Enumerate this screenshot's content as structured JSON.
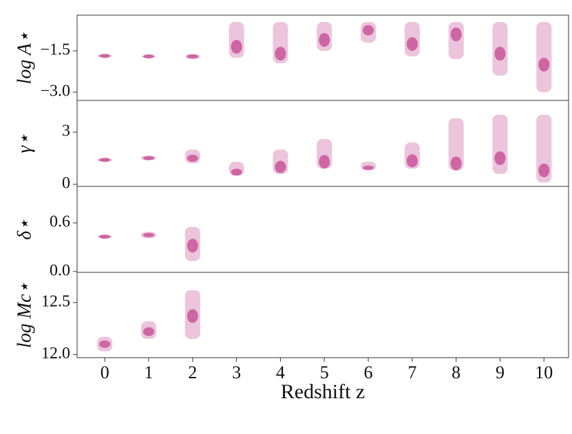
{
  "chart_data": [
    {
      "type": "strip",
      "ylabel": "log A⋆",
      "color": "#c9559b",
      "x": [
        0,
        1,
        2,
        3,
        4,
        5,
        6,
        7,
        8,
        9,
        10
      ],
      "xlim": [
        -0.63,
        10.56
      ],
      "ylim": [
        -3.3,
        -0.2
      ],
      "yticks": [
        {
          "value": -1.5,
          "label": "−1.5"
        },
        {
          "value": -3.0,
          "label": "−3.0"
        }
      ],
      "median": [
        -1.68,
        -1.7,
        -1.7,
        -1.35,
        -1.6,
        -1.1,
        -0.75,
        -1.25,
        -0.9,
        -1.6,
        -2.0
      ],
      "low": [
        -1.72,
        -1.73,
        -1.8,
        -1.75,
        -1.95,
        -1.5,
        -1.2,
        -1.7,
        -1.8,
        -2.4,
        -3.0
      ],
      "high": [
        -1.64,
        -1.67,
        -1.62,
        -0.45,
        -0.45,
        -0.45,
        -0.45,
        -0.45,
        -0.45,
        -0.45,
        -0.45
      ]
    },
    {
      "type": "strip",
      "ylabel": "γ⋆",
      "color": "#c9559b",
      "x": [
        0,
        1,
        2,
        3,
        4,
        5,
        6,
        7,
        8,
        9,
        10
      ],
      "xlim": [
        -0.63,
        10.56
      ],
      "ylim": [
        -0.12,
        4.82
      ],
      "yticks": [
        3,
        0
      ],
      "median": [
        1.4,
        1.5,
        1.5,
        0.7,
        1.0,
        1.3,
        0.95,
        1.35,
        1.2,
        1.5,
        0.8
      ],
      "low": [
        1.3,
        1.4,
        1.2,
        0.5,
        0.6,
        0.9,
        0.8,
        0.9,
        0.8,
        0.6,
        0.1
      ],
      "high": [
        1.5,
        1.65,
        2.0,
        1.3,
        2.0,
        2.6,
        1.3,
        2.4,
        3.8,
        4.0,
        4.0
      ]
    },
    {
      "type": "strip",
      "ylabel": "δ⋆",
      "color": "#c9559b",
      "x": [
        0,
        1,
        2
      ],
      "xlim": [
        -0.63,
        10.56
      ],
      "ylim": [
        -0.01,
        1.05
      ],
      "yticks": [
        0.6,
        {
          "value": 0,
          "label": "0.0"
        }
      ],
      "median": [
        0.43,
        0.45,
        0.32
      ],
      "low": [
        0.41,
        0.41,
        0.13
      ],
      "high": [
        0.45,
        0.49,
        0.55
      ]
    },
    {
      "type": "strip",
      "ylabel": "log Mc⋆",
      "color": "#c9559b",
      "x": [
        0,
        1,
        2
      ],
      "xlim": [
        -0.63,
        10.56
      ],
      "ylim": [
        11.97,
        12.79
      ],
      "yticks": [
        12.5,
        {
          "value": 12,
          "label": "12.0"
        }
      ],
      "median": [
        12.1,
        12.22,
        12.37
      ],
      "low": [
        12.03,
        12.15,
        12.15
      ],
      "high": [
        12.17,
        12.32,
        12.62
      ],
      "xlabel": "Redshift z",
      "xticks": [
        0,
        1,
        2,
        3,
        4,
        5,
        6,
        7,
        8,
        9,
        10
      ]
    }
  ]
}
